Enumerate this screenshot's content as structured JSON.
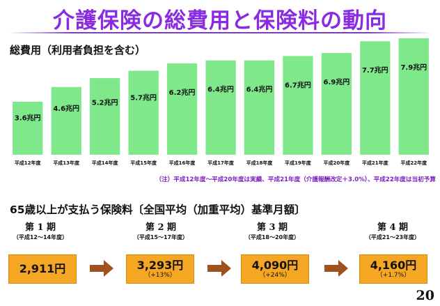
{
  "title": "介護保険の総費用と保険料の動向",
  "chart_label": "総費用（利用者負担を含む）",
  "chart_data": {
    "type": "bar",
    "title": "総費用（利用者負担を含む）",
    "categories": [
      "平成12年度",
      "平成13年度",
      "平成14年度",
      "平成15年度",
      "平成16年度",
      "平成17年度",
      "平成18年度",
      "平成19年度",
      "平成20年度",
      "平成21年度",
      "平成22年度"
    ],
    "values": [
      3.6,
      4.6,
      5.2,
      5.7,
      6.2,
      6.4,
      6.4,
      6.7,
      6.9,
      7.7,
      7.9
    ],
    "value_labels": [
      "3.6兆円",
      "4.6兆円",
      "5.2兆円",
      "5.7兆円",
      "6.2兆円",
      "6.4兆円",
      "6.4兆円",
      "6.7兆円",
      "6.9兆円",
      "7.7兆円",
      "7.9兆円"
    ],
    "unit": "兆円",
    "ylim": [
      0,
      7.9
    ],
    "bar_color": "#7ee88a",
    "grid": false
  },
  "note": "（注）平成12年度～平成20年度は実績、平成21年度（介護報酬改定＋3.0%）、平成22年度は当初予算",
  "premium_title": "65歳以上が支払う保険料〔全国平均（加重平均）基準月額〕",
  "periods": [
    {
      "name": "第 1 期",
      "range": "（平成12～14年度）",
      "amount": "2,911円",
      "change": ""
    },
    {
      "name": "第 2 期",
      "range": "（平成15～17年度）",
      "amount": "3,293円",
      "change": "（+13%）"
    },
    {
      "name": "第 3 期",
      "range": "（平成18～20年度）",
      "amount": "4,090円",
      "change": "（+24%）"
    },
    {
      "name": "第 4 期",
      "range": "（平成21～23年度）",
      "amount": "4,160円",
      "change": "（+1.7%）"
    }
  ],
  "colors": {
    "title": "#8a2be2",
    "bar": "#7ee88a",
    "box": "#f5a623",
    "arrow": "#a0521e",
    "note": "#7a1fc0"
  },
  "page_number": "20"
}
